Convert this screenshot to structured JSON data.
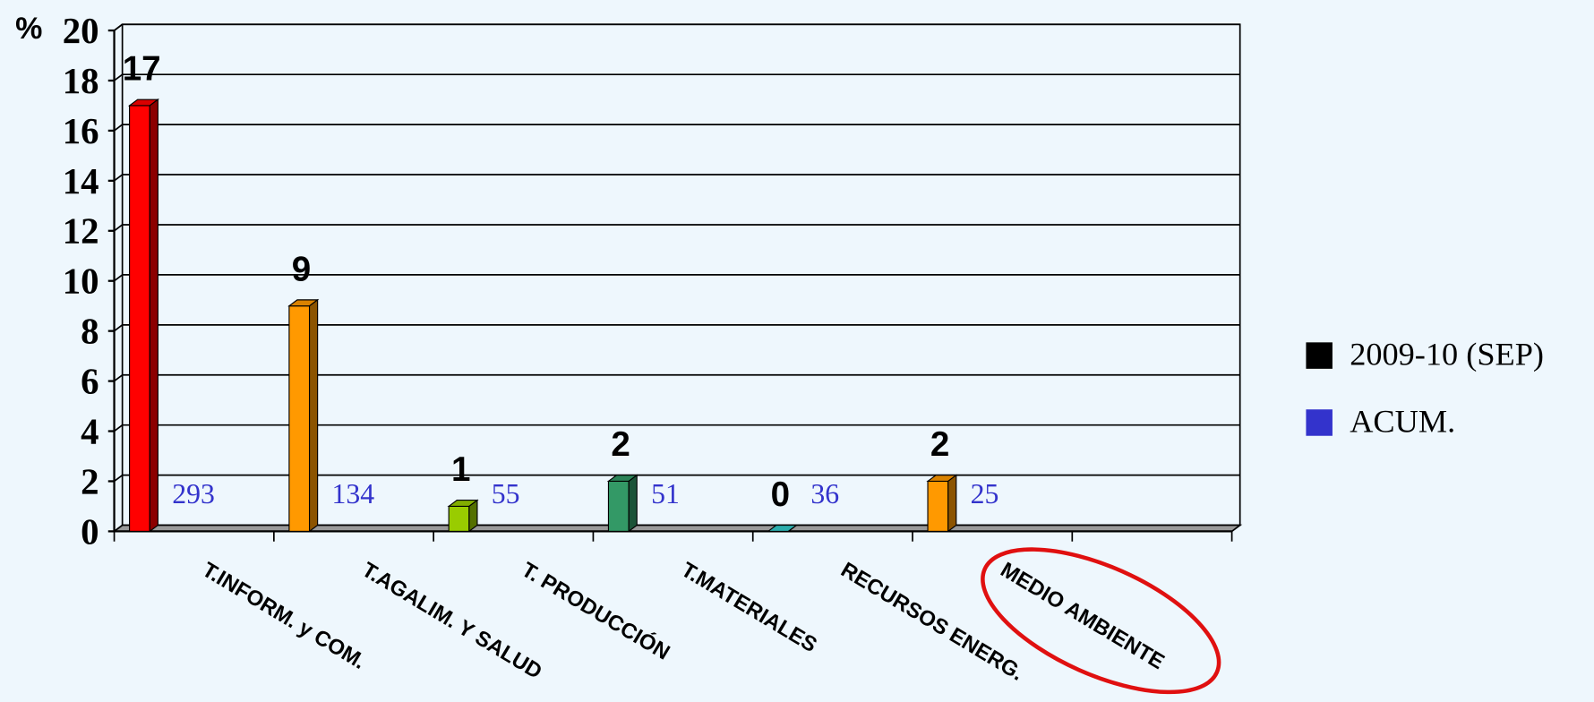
{
  "chart_data": {
    "type": "bar",
    "y_axis_label": "%",
    "categories": [
      "T.INFORM. y COM.",
      "T.AGALIM. Y SALUD",
      "T. PRODUCCIÓN",
      "T.MATERIALES",
      "RECURSOS ENERG.",
      "MEDIO AMBIENTE",
      null
    ],
    "series": [
      {
        "name": "2009-10 (SEP)",
        "color": "#000000",
        "bar_colors": [
          "#ff0000",
          "#ff9900",
          "#99cc00",
          "#339966",
          "#33cccc",
          "#ff9900",
          null
        ],
        "values": [
          17,
          9,
          1,
          2,
          0,
          2,
          null
        ]
      },
      {
        "name": "ACUM.",
        "color": "#3333cc",
        "values": [
          293,
          134,
          55,
          51,
          36,
          25,
          null
        ]
      }
    ],
    "ylim": [
      0,
      20
    ],
    "yticks": [
      0,
      2,
      4,
      6,
      8,
      10,
      12,
      14,
      16,
      18,
      20
    ],
    "grid": true,
    "legend": "right"
  }
}
